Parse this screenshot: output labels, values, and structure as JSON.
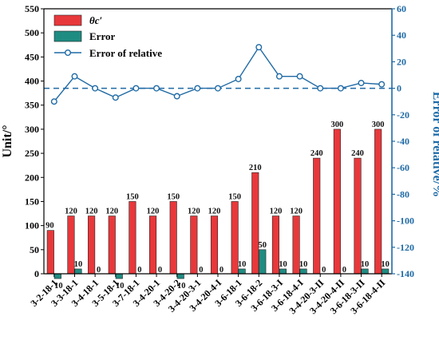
{
  "chart_data": {
    "type": "bar",
    "ylabel_left": "Unit/°",
    "ylabel_right": "Error of relative/%",
    "ylim_left": [
      0,
      550
    ],
    "ylim_right": [
      -140,
      60
    ],
    "yticks_left": [
      0,
      50,
      100,
      150,
      200,
      250,
      300,
      350,
      400,
      450,
      500,
      550
    ],
    "yticks_right": [
      -140,
      -120,
      -100,
      -80,
      -60,
      -40,
      -20,
      0,
      20,
      40,
      60
    ],
    "zero_reference_right": 0,
    "categories": [
      "3-2-18-1",
      "3-3-18-1",
      "3-4-18-1",
      "3-5-18-1",
      "3-7-18-1",
      "3-4-20-1",
      "3-4-20-2",
      "3-4-20-3-1",
      "3-4-20-4-I",
      "3-6-18-1",
      "3-6-18-2",
      "3-6-18-3-I",
      "3-6-18-4-I",
      "3-4-20-3-II",
      "3-4-20-4-II",
      "3-6-18-3-II",
      "3-6-18-4-II"
    ],
    "series": [
      {
        "name": "θc′",
        "kind": "bar",
        "axis": "left",
        "color": "#e8383b",
        "values": [
          90,
          120,
          120,
          120,
          150,
          120,
          150,
          120,
          120,
          150,
          210,
          120,
          120,
          240,
          300,
          240,
          300
        ],
        "labels": [
          "90",
          "120",
          "120",
          "120",
          "150",
          "120",
          "150",
          "120",
          "120",
          "150",
          "210",
          "120",
          "120",
          "240",
          "300",
          "240",
          "300"
        ]
      },
      {
        "name": "Error",
        "kind": "bar",
        "axis": "left",
        "color": "#1f8c82",
        "values": [
          -10,
          10,
          0,
          -10,
          0,
          0,
          -10,
          0,
          0,
          10,
          50,
          10,
          10,
          0,
          0,
          10,
          10
        ],
        "labels": [
          "10",
          "10",
          "0",
          "10",
          "0",
          "0",
          "10",
          "0",
          "0",
          "10",
          "50",
          "10",
          "10",
          "0",
          "0",
          "10",
          "10"
        ]
      },
      {
        "name": "Error of relative",
        "kind": "line",
        "axis": "right",
        "color": "#1f6aa5",
        "values": [
          -10,
          9,
          0,
          -7,
          0,
          0,
          -6,
          0,
          0,
          7,
          31,
          9,
          9,
          0,
          0,
          4,
          3
        ]
      }
    ],
    "legend_position": "top-left",
    "grid": false
  }
}
